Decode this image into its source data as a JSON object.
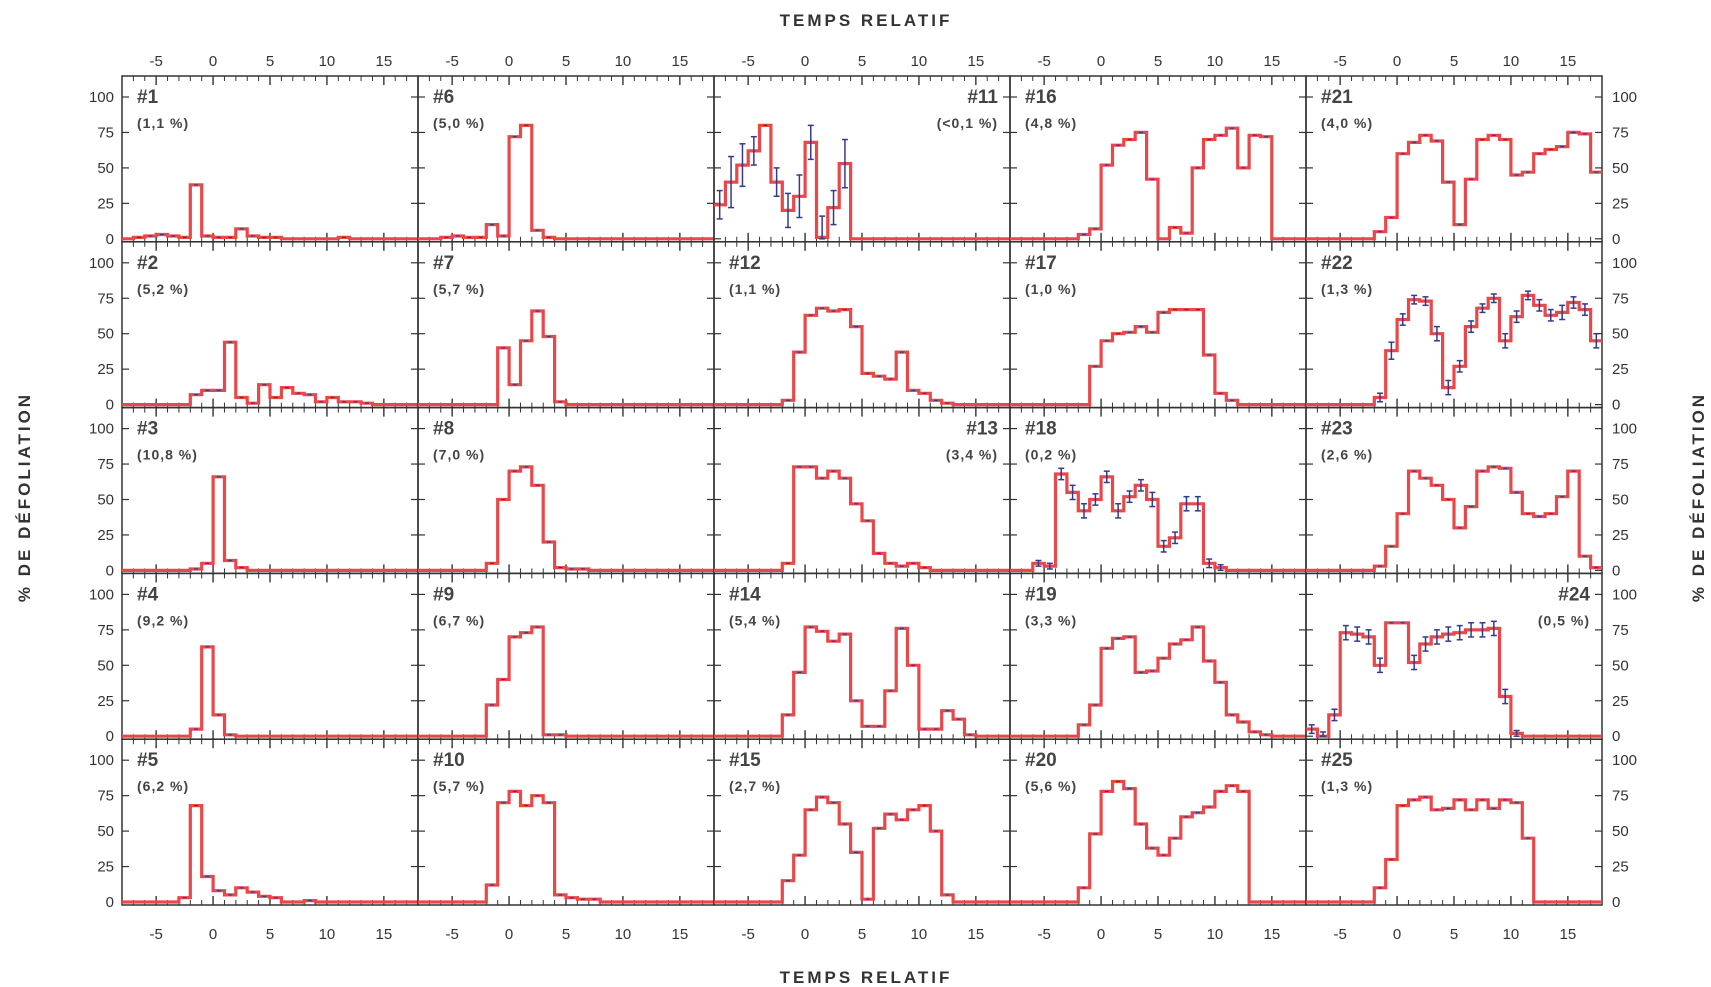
{
  "chart_data": {
    "type": "line",
    "rows": 5,
    "cols": 5,
    "top_title": "TEMPS RELATIF",
    "bottom_title": "TEMPS RELATIF",
    "ylabel": "% DE DÉFOLIATION",
    "xlim": [
      -8,
      18
    ],
    "ylim": [
      0,
      100
    ],
    "xticks": [
      "-5",
      "0",
      "5",
      "10",
      "15"
    ],
    "yticks": [
      "0",
      "25",
      "50",
      "75",
      "100"
    ],
    "colors": {
      "line": "#e8484a",
      "errorbar": "#333b8c",
      "axis": "#333333"
    },
    "panels": [
      {
        "id": "#1",
        "pct": "(1,1 %)",
        "label_side": "left",
        "x_start": -8,
        "values": [
          0,
          1,
          2,
          3,
          2,
          1,
          38,
          2,
          1,
          1,
          7,
          2,
          1,
          1,
          0,
          0,
          0,
          0,
          0,
          1,
          0,
          0,
          0,
          0,
          0,
          0
        ]
      },
      {
        "id": "#6",
        "pct": "(5,0 %)",
        "label_side": "left",
        "x_start": -8,
        "values": [
          0,
          0,
          1,
          2,
          1,
          1,
          10,
          2,
          72,
          80,
          6,
          1,
          0,
          0,
          0,
          0,
          0,
          0,
          0,
          0,
          0,
          0,
          0,
          0,
          0,
          0
        ]
      },
      {
        "id": "#11",
        "pct": "(<0,1 %)",
        "label_side": "right",
        "x_start": -8,
        "values": [
          24,
          40,
          52,
          62,
          80,
          40,
          20,
          30,
          68,
          1,
          22,
          53,
          0,
          0,
          0,
          0,
          0,
          0,
          0,
          0,
          0,
          0,
          0,
          0,
          0,
          0
        ],
        "errors": [
          10,
          18,
          15,
          10,
          0,
          10,
          12,
          15,
          12,
          15,
          12,
          17,
          0,
          0,
          0,
          0,
          0,
          0,
          0,
          0,
          0,
          0,
          0,
          0,
          0,
          0
        ]
      },
      {
        "id": "#16",
        "pct": "(4,8 %)",
        "label_side": "left",
        "x_start": -8,
        "values": [
          0,
          0,
          0,
          0,
          0,
          0,
          3,
          7,
          52,
          66,
          70,
          75,
          42,
          0,
          8,
          4,
          50,
          70,
          73,
          78,
          50,
          73,
          72,
          0,
          0,
          0
        ]
      },
      {
        "id": "#21",
        "pct": "(4,0 %)",
        "label_side": "left",
        "x_start": -8,
        "values": [
          0,
          0,
          0,
          0,
          0,
          0,
          5,
          15,
          60,
          68,
          73,
          69,
          40,
          10,
          42,
          70,
          73,
          70,
          45,
          47,
          60,
          63,
          65,
          75,
          74,
          47
        ]
      },
      {
        "id": "#2",
        "pct": "(5,2 %)",
        "label_side": "left",
        "x_start": -8,
        "values": [
          0,
          0,
          0,
          0,
          0,
          0,
          7,
          10,
          10,
          44,
          5,
          1,
          14,
          5,
          12,
          8,
          7,
          2,
          5,
          2,
          2,
          1,
          0,
          0,
          0,
          0
        ]
      },
      {
        "id": "#7",
        "pct": "(5,7 %)",
        "label_side": "left",
        "x_start": -8,
        "values": [
          0,
          0,
          0,
          0,
          0,
          0,
          0,
          40,
          14,
          45,
          66,
          48,
          2,
          0,
          0,
          0,
          0,
          0,
          0,
          0,
          0,
          0,
          0,
          0,
          0,
          0
        ]
      },
      {
        "id": "#12",
        "pct": "(1,1 %)",
        "label_side": "left",
        "x_start": -8,
        "values": [
          0,
          0,
          0,
          0,
          0,
          0,
          3,
          37,
          63,
          68,
          66,
          67,
          55,
          22,
          20,
          18,
          37,
          10,
          8,
          3,
          1,
          0,
          0,
          0,
          0,
          0
        ]
      },
      {
        "id": "#17",
        "pct": "(1,0 %)",
        "label_side": "left",
        "x_start": -8,
        "values": [
          0,
          0,
          0,
          0,
          0,
          0,
          0,
          27,
          45,
          50,
          51,
          55,
          51,
          65,
          67,
          67,
          67,
          35,
          8,
          3,
          0,
          0,
          0,
          0,
          0,
          0
        ]
      },
      {
        "id": "#22",
        "pct": "(1,3 %)",
        "label_side": "left",
        "x_start": -8,
        "values": [
          0,
          0,
          0,
          0,
          0,
          0,
          5,
          38,
          60,
          74,
          73,
          50,
          12,
          27,
          55,
          68,
          75,
          45,
          62,
          77,
          70,
          63,
          65,
          72,
          67,
          45
        ],
        "errors": [
          0,
          0,
          0,
          0,
          0,
          0,
          3,
          6,
          4,
          3,
          3,
          5,
          5,
          4,
          4,
          3,
          3,
          5,
          4,
          3,
          4,
          4,
          5,
          4,
          4,
          5
        ]
      },
      {
        "id": "#3",
        "pct": "(10,8 %)",
        "label_side": "left",
        "x_start": -8,
        "values": [
          0,
          0,
          0,
          0,
          0,
          0,
          1,
          5,
          66,
          7,
          2,
          0,
          0,
          0,
          0,
          0,
          0,
          0,
          0,
          0,
          0,
          0,
          0,
          0,
          0,
          0
        ]
      },
      {
        "id": "#8",
        "pct": "(7,0 %)",
        "label_side": "left",
        "x_start": -8,
        "values": [
          0,
          0,
          0,
          0,
          0,
          0,
          5,
          50,
          70,
          73,
          60,
          20,
          2,
          1,
          1,
          0,
          0,
          0,
          0,
          0,
          0,
          0,
          0,
          0,
          0,
          0
        ]
      },
      {
        "id": "#13",
        "pct": "(3,4 %)",
        "label_side": "right",
        "x_start": -8,
        "values": [
          0,
          0,
          0,
          0,
          0,
          0,
          5,
          73,
          73,
          65,
          70,
          65,
          47,
          35,
          12,
          5,
          3,
          5,
          2,
          0,
          0,
          0,
          0,
          0,
          0,
          0
        ]
      },
      {
        "id": "#18",
        "pct": "(0,2 %)",
        "label_side": "left",
        "x_start": -8,
        "values": [
          0,
          0,
          5,
          3,
          68,
          55,
          42,
          50,
          66,
          42,
          52,
          60,
          50,
          17,
          23,
          47,
          47,
          5,
          2,
          0,
          0,
          0,
          0,
          0,
          0,
          0
        ],
        "errors": [
          0,
          0,
          2,
          2,
          4,
          5,
          5,
          4,
          4,
          5,
          4,
          4,
          5,
          4,
          4,
          5,
          5,
          3,
          2,
          0,
          0,
          0,
          0,
          0,
          0,
          0
        ]
      },
      {
        "id": "#23",
        "pct": "(2,6 %)",
        "label_side": "left",
        "x_start": -8,
        "values": [
          0,
          0,
          0,
          0,
          0,
          0,
          3,
          17,
          40,
          70,
          65,
          60,
          50,
          30,
          45,
          70,
          73,
          72,
          55,
          40,
          38,
          40,
          52,
          70,
          10,
          2
        ]
      },
      {
        "id": "#4",
        "pct": "(9,2 %)",
        "label_side": "left",
        "x_start": -8,
        "values": [
          0,
          0,
          0,
          0,
          0,
          0,
          5,
          63,
          15,
          1,
          0,
          0,
          0,
          0,
          0,
          0,
          0,
          0,
          0,
          0,
          0,
          0,
          0,
          0,
          0,
          0
        ]
      },
      {
        "id": "#9",
        "pct": "(6,7 %)",
        "label_side": "left",
        "x_start": -8,
        "values": [
          0,
          0,
          0,
          0,
          0,
          0,
          22,
          40,
          70,
          73,
          77,
          1,
          1,
          0,
          0,
          0,
          0,
          0,
          0,
          0,
          0,
          0,
          0,
          0,
          0,
          0
        ]
      },
      {
        "id": "#14",
        "pct": "(5,4 %)",
        "label_side": "left",
        "x_start": -8,
        "values": [
          0,
          0,
          0,
          0,
          0,
          0,
          15,
          45,
          77,
          74,
          67,
          72,
          25,
          7,
          7,
          32,
          76,
          50,
          5,
          5,
          18,
          12,
          1,
          0,
          0,
          0
        ]
      },
      {
        "id": "#19",
        "pct": "(3,3 %)",
        "label_side": "left",
        "x_start": -8,
        "values": [
          0,
          0,
          0,
          0,
          0,
          0,
          8,
          22,
          62,
          69,
          70,
          45,
          46,
          55,
          65,
          68,
          77,
          53,
          38,
          15,
          10,
          3,
          1,
          0,
          0,
          0
        ]
      },
      {
        "id": "#24",
        "pct": "(0,5 %)",
        "label_side": "right",
        "x_start": -8,
        "values": [
          5,
          0,
          15,
          73,
          72,
          70,
          50,
          80,
          80,
          52,
          65,
          70,
          72,
          73,
          75,
          75,
          76,
          28,
          2,
          0,
          0,
          0,
          0,
          0,
          0,
          0
        ],
        "errors": [
          3,
          3,
          4,
          5,
          5,
          5,
          5,
          0,
          0,
          5,
          5,
          5,
          5,
          5,
          5,
          5,
          5,
          5,
          2,
          0,
          0,
          0,
          0,
          0,
          0,
          0
        ]
      },
      {
        "id": "#5",
        "pct": "(6,2 %)",
        "label_side": "left",
        "x_start": -8,
        "values": [
          0,
          0,
          0,
          0,
          0,
          3,
          68,
          18,
          8,
          5,
          10,
          7,
          4,
          3,
          0,
          0,
          1,
          0,
          0,
          0,
          0,
          0,
          0,
          0,
          0,
          0
        ]
      },
      {
        "id": "#10",
        "pct": "(5,7 %)",
        "label_side": "left",
        "x_start": -8,
        "values": [
          0,
          0,
          0,
          0,
          0,
          0,
          12,
          70,
          78,
          68,
          75,
          70,
          5,
          3,
          2,
          2,
          0,
          0,
          0,
          0,
          0,
          0,
          0,
          0,
          0,
          0
        ]
      },
      {
        "id": "#15",
        "pct": "(2,7 %)",
        "label_side": "left",
        "x_start": -8,
        "values": [
          0,
          0,
          0,
          0,
          0,
          0,
          15,
          33,
          65,
          74,
          70,
          55,
          35,
          2,
          52,
          62,
          58,
          65,
          68,
          50,
          5,
          0,
          0,
          0,
          0,
          0
        ]
      },
      {
        "id": "#20",
        "pct": "(5,6 %)",
        "label_side": "left",
        "x_start": -8,
        "values": [
          0,
          0,
          0,
          0,
          0,
          0,
          10,
          48,
          78,
          85,
          80,
          55,
          38,
          33,
          45,
          60,
          63,
          67,
          78,
          82,
          78,
          0,
          0,
          0,
          0,
          0
        ]
      },
      {
        "id": "#25",
        "pct": "(1,3 %)",
        "label_side": "left",
        "x_start": -8,
        "values": [
          0,
          0,
          0,
          0,
          0,
          0,
          10,
          30,
          68,
          72,
          74,
          65,
          66,
          72,
          65,
          72,
          66,
          72,
          70,
          45,
          0,
          0,
          0,
          0,
          0,
          0
        ]
      }
    ]
  }
}
